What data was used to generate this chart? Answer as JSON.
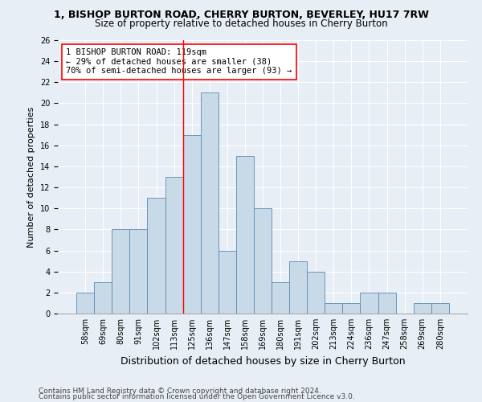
{
  "title": "1, BISHOP BURTON ROAD, CHERRY BURTON, BEVERLEY, HU17 7RW",
  "subtitle": "Size of property relative to detached houses in Cherry Burton",
  "xlabel": "Distribution of detached houses by size in Cherry Burton",
  "ylabel": "Number of detached properties",
  "categories": [
    "58sqm",
    "69sqm",
    "80sqm",
    "91sqm",
    "102sqm",
    "113sqm",
    "125sqm",
    "136sqm",
    "147sqm",
    "158sqm",
    "169sqm",
    "180sqm",
    "191sqm",
    "202sqm",
    "213sqm",
    "224sqm",
    "236sqm",
    "247sqm",
    "258sqm",
    "269sqm",
    "280sqm"
  ],
  "values": [
    2,
    3,
    8,
    8,
    11,
    13,
    17,
    21,
    6,
    15,
    10,
    3,
    5,
    4,
    1,
    1,
    2,
    2,
    0,
    1,
    1
  ],
  "bar_color": "#c8d9e8",
  "bar_edge_color": "#5b8ab0",
  "vline_x": 5.5,
  "vline_color": "red",
  "annotation_text": "1 BISHOP BURTON ROAD: 119sqm\n← 29% of detached houses are smaller (38)\n70% of semi-detached houses are larger (93) →",
  "annotation_box_color": "white",
  "annotation_box_edge_color": "red",
  "ylim": [
    0,
    26
  ],
  "yticks": [
    0,
    2,
    4,
    6,
    8,
    10,
    12,
    14,
    16,
    18,
    20,
    22,
    24,
    26
  ],
  "footer1": "Contains HM Land Registry data © Crown copyright and database right 2024.",
  "footer2": "Contains public sector information licensed under the Open Government Licence v3.0.",
  "bg_color": "#e8eef5",
  "title_fontsize": 9,
  "subtitle_fontsize": 8.5,
  "xlabel_fontsize": 9,
  "ylabel_fontsize": 8,
  "tick_fontsize": 7,
  "footer_fontsize": 6.5,
  "annotation_fontsize": 7.5
}
